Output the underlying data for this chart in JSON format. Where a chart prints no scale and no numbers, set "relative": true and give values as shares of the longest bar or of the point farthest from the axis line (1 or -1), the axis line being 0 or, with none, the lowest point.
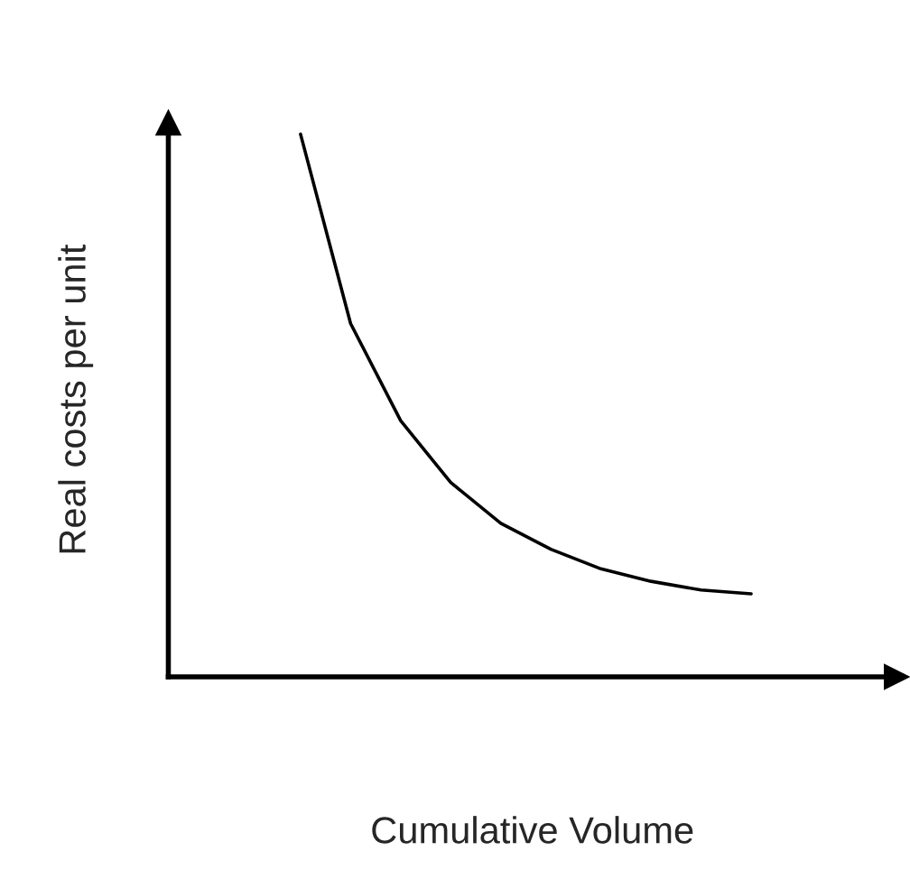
{
  "chart_data": {
    "type": "line",
    "relative": true,
    "xlabel": "Cumulative Volume",
    "ylabel": "Real costs per unit",
    "categories": [
      null,
      null,
      null,
      null,
      null,
      null,
      null,
      null,
      null,
      null
    ],
    "series": [
      {
        "color": "#000000",
        "values": [
          1,
          0.651,
          0.472,
          0.358,
          0.283,
          0.235,
          0.199,
          0.176,
          0.16,
          0.153
        ]
      }
    ],
    "marker": "none",
    "line_style": "solid"
  }
}
